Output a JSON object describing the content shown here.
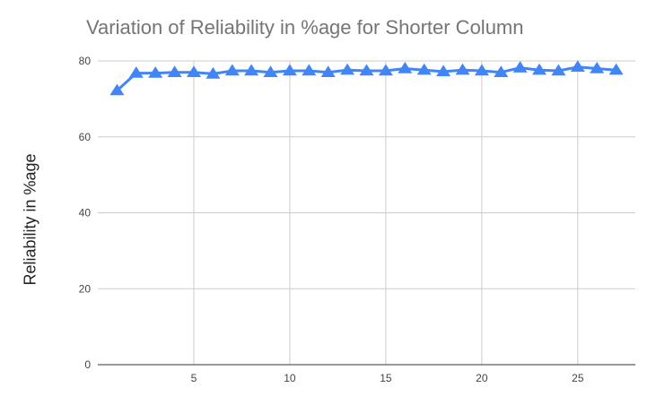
{
  "chart_data": {
    "type": "line",
    "title": "Variation of Reliability in %age for Shorter Column",
    "xlabel": "",
    "ylabel": "Reliability in %age",
    "xlim": [
      0,
      28
    ],
    "ylim": [
      0,
      80
    ],
    "x_ticks": [
      5,
      10,
      15,
      20,
      25
    ],
    "y_ticks": [
      0,
      20,
      40,
      60,
      80
    ],
    "grid": true,
    "legend": "none",
    "marker": "triangle",
    "series": [
      {
        "color": "#4285f4",
        "x": [
          1,
          2,
          3,
          4,
          5,
          6,
          7,
          8,
          9,
          10,
          11,
          12,
          13,
          14,
          15,
          16,
          17,
          18,
          19,
          20,
          21,
          22,
          23,
          24,
          25,
          26,
          27
        ],
        "values": [
          72.2,
          76.8,
          76.8,
          77.0,
          77.0,
          76.6,
          77.4,
          77.4,
          77.0,
          77.4,
          77.4,
          77.0,
          77.6,
          77.4,
          77.4,
          78.0,
          77.6,
          77.2,
          77.6,
          77.4,
          77.0,
          78.2,
          77.6,
          77.4,
          78.4,
          78.0,
          77.6
        ]
      }
    ]
  }
}
